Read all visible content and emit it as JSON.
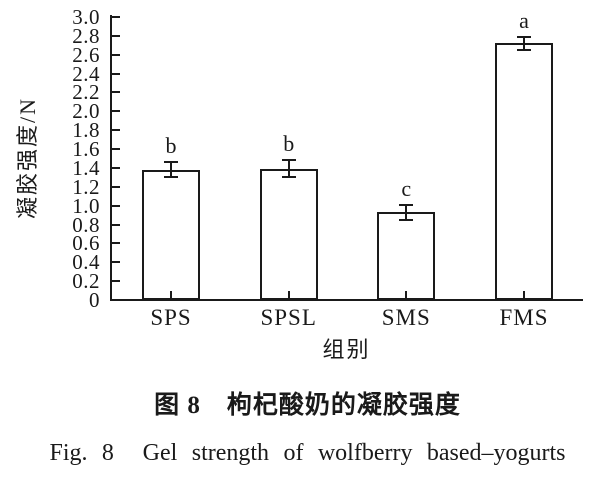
{
  "figure": {
    "captions": {
      "chinese": "图 8　枸杞酸奶的凝胶强度",
      "english": "Fig. 8  Gel strength of wolfberry based–yogurts"
    }
  },
  "chart_data": {
    "type": "bar",
    "title": "",
    "xlabel": "组别",
    "ylabel": "凝胶强度/N",
    "categories": [
      "SPS",
      "SPSL",
      "SMS",
      "FMS"
    ],
    "values": [
      1.38,
      1.39,
      0.93,
      2.72
    ],
    "errors": [
      0.08,
      0.09,
      0.08,
      0.07
    ],
    "sig_letters": [
      "b",
      "b",
      "c",
      "a"
    ],
    "ylim": [
      0,
      3.0
    ],
    "ytick_step": 0.2,
    "ytick_count": 15,
    "grid": false,
    "legend": null,
    "bar_fill": "#ffffff",
    "axis_color": "#1a1a1a"
  }
}
